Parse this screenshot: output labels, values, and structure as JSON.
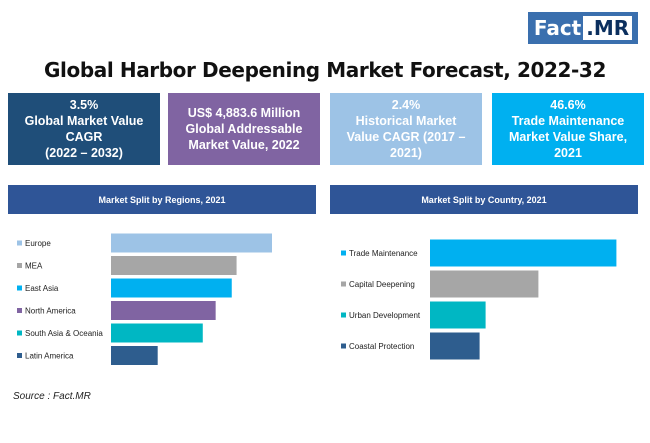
{
  "logo": {
    "part1": "Fact",
    "part2": ".MR"
  },
  "title": "Global Harbor Deepening Market Forecast, 2022-32",
  "kpis": [
    {
      "line1": "3.5%",
      "line2": "Global Market Value",
      "line3": "CAGR",
      "line4": "(2022 – 2032)",
      "color": "#1f4e79"
    },
    {
      "line1": "US$ 4,883.6 Million",
      "line2": "Global Addressable",
      "line3": "Market Value, 2022",
      "line4": "",
      "color": "#8064a2"
    },
    {
      "line1": "2.4%",
      "line2": "Historical Market",
      "line3": "Value CAGR (2017 –",
      "line4": "2021)",
      "color": "#9dc3e6"
    },
    {
      "line1": "46.6%",
      "line2": "Trade Maintenance",
      "line3": "Market Value Share,",
      "line4": "2021",
      "color": "#00b0f0"
    }
  ],
  "source": "Source : Fact.MR",
  "chart_data": [
    {
      "type": "bar",
      "orientation": "horizontal",
      "title": "Market Split by Regions, 2021",
      "categories": [
        "Europe",
        "MEA",
        "East Asia",
        "North America",
        "South Asia & Oceania",
        "Latin America"
      ],
      "values": [
        100,
        78,
        75,
        65,
        57,
        29
      ],
      "colors": [
        "#9dc3e6",
        "#a6a6a6",
        "#00b0f0",
        "#8064a2",
        "#00b7c3",
        "#2e5d8e"
      ],
      "xlim": [
        0,
        100
      ]
    },
    {
      "type": "bar",
      "orientation": "horizontal",
      "title": "Market Split by Country, 2021",
      "categories": [
        "Trade Maintenance",
        "Capital Deepening",
        "Urban Development",
        "Coastal Protection"
      ],
      "values": [
        46.6,
        27.1,
        13.9,
        12.4
      ],
      "colors": [
        "#00b0f0",
        "#a6a6a6",
        "#00b7c3",
        "#2e5d8e"
      ],
      "xlim": [
        0,
        50
      ]
    }
  ]
}
